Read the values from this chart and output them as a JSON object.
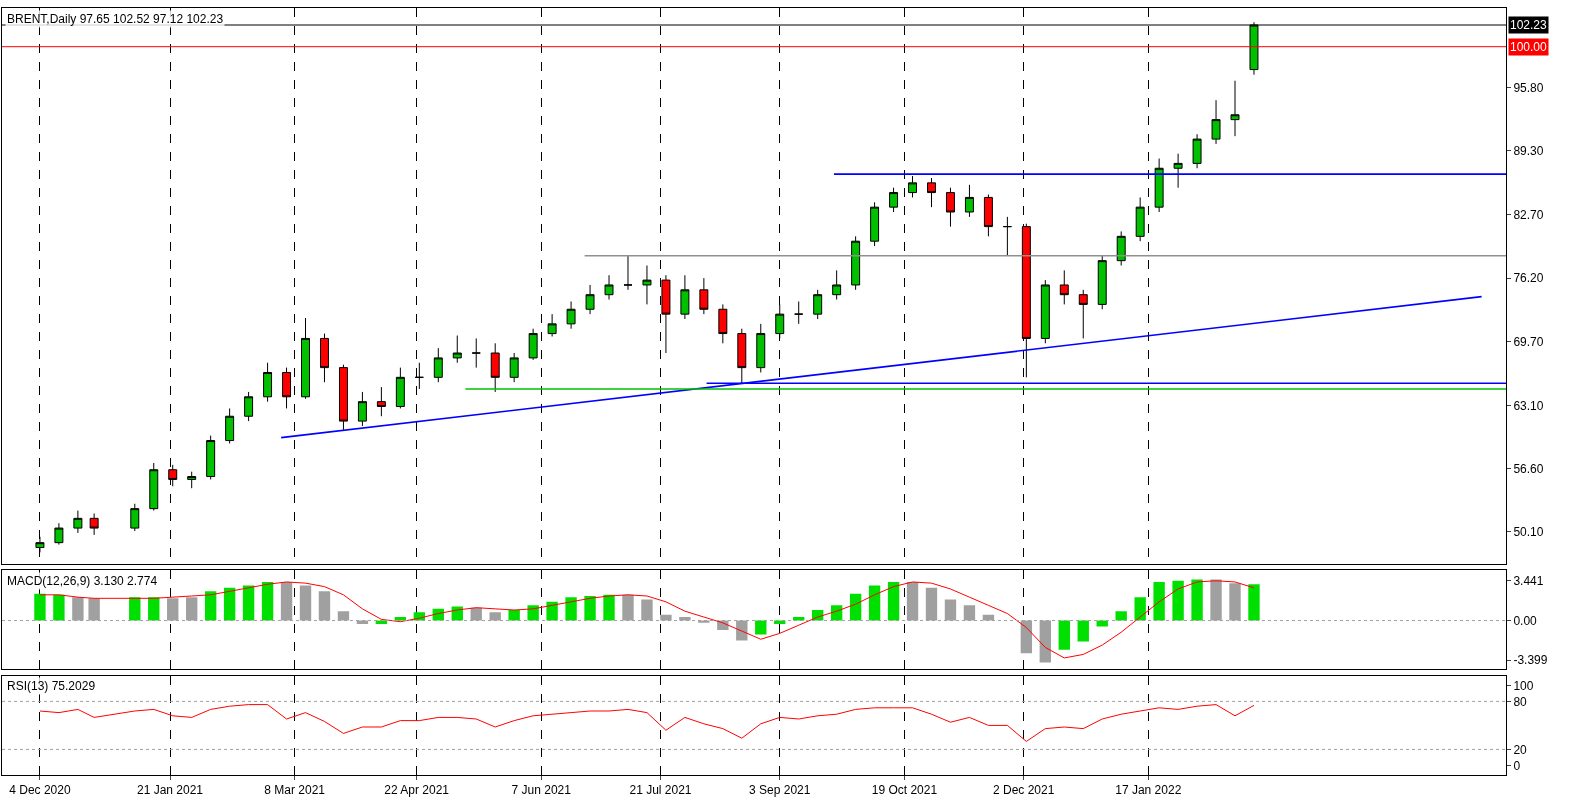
{
  "chart_data": [
    {
      "type": "candlestick",
      "annotations": [
        "BRENT,Daily 97.65 102.52 97.12 102.23"
      ],
      "x": [
        "2020-12-04",
        "2020-12-11",
        "2020-12-18",
        "2020-12-24",
        "2021-01-08",
        "2021-01-15",
        "2021-01-22",
        "2021-01-29",
        "2021-02-05",
        "2021-02-12",
        "2021-02-19",
        "2021-02-26",
        "2021-03-05",
        "2021-03-12",
        "2021-03-19",
        "2021-03-26",
        "2021-04-02",
        "2021-04-09",
        "2021-04-16",
        "2021-04-23",
        "2021-04-30",
        "2021-05-07",
        "2021-05-14",
        "2021-05-21",
        "2021-05-28",
        "2021-06-04",
        "2021-06-11",
        "2021-06-18",
        "2021-06-25",
        "2021-07-02",
        "2021-07-09",
        "2021-07-16",
        "2021-07-23",
        "2021-07-30",
        "2021-08-06",
        "2021-08-13",
        "2021-08-20",
        "2021-08-27",
        "2021-09-03",
        "2021-09-10",
        "2021-09-17",
        "2021-09-24",
        "2021-10-01",
        "2021-10-08",
        "2021-10-15",
        "2021-10-22",
        "2021-10-29",
        "2021-11-05",
        "2021-11-12",
        "2021-11-19",
        "2021-11-26",
        "2021-12-03",
        "2021-12-10",
        "2021-12-17",
        "2021-12-24",
        "2021-12-31",
        "2022-01-07",
        "2022-01-14",
        "2022-01-21",
        "2022-01-28",
        "2022-02-04",
        "2022-02-11",
        "2022-02-18",
        "2022-02-25"
      ],
      "ohlc": [
        [
          48.5,
          49.6,
          48.0,
          49.0
        ],
        [
          49.0,
          51.0,
          48.8,
          50.5
        ],
        [
          50.5,
          52.3,
          50.0,
          51.5
        ],
        [
          51.5,
          52.0,
          49.8,
          50.5
        ],
        [
          50.5,
          53.0,
          50.2,
          52.5
        ],
        [
          52.5,
          57.2,
          52.3,
          56.5
        ],
        [
          56.5,
          57.0,
          54.8,
          55.5
        ],
        [
          55.5,
          56.3,
          54.6,
          55.8
        ],
        [
          55.8,
          60.0,
          55.5,
          59.5
        ],
        [
          59.5,
          62.8,
          59.2,
          62.0
        ],
        [
          62.0,
          64.5,
          61.5,
          64.0
        ],
        [
          64.0,
          67.5,
          63.5,
          66.5
        ],
        [
          66.5,
          67.0,
          62.8,
          64.0
        ],
        [
          64.0,
          72.1,
          63.8,
          70.0
        ],
        [
          70.0,
          70.5,
          65.5,
          67.0
        ],
        [
          67.0,
          67.3,
          60.6,
          61.5
        ],
        [
          61.5,
          64.5,
          61.0,
          63.5
        ],
        [
          63.5,
          65.0,
          62.0,
          63.0
        ],
        [
          63.0,
          67.0,
          62.8,
          66.0
        ],
        [
          66.0,
          67.5,
          64.8,
          66.0
        ],
        [
          66.0,
          69.0,
          65.5,
          68.0
        ],
        [
          68.0,
          70.3,
          67.5,
          68.5
        ],
        [
          68.5,
          70.0,
          67.0,
          68.5
        ],
        [
          68.5,
          69.5,
          64.5,
          66.0
        ],
        [
          66.0,
          68.5,
          65.5,
          68.0
        ],
        [
          68.0,
          71.0,
          67.8,
          70.5
        ],
        [
          70.5,
          72.5,
          70.2,
          71.5
        ],
        [
          71.5,
          73.8,
          71.0,
          73.0
        ],
        [
          73.0,
          75.5,
          72.5,
          74.5
        ],
        [
          74.5,
          76.5,
          74.0,
          75.5
        ],
        [
          75.5,
          78.5,
          75.0,
          75.5
        ],
        [
          75.5,
          77.5,
          73.5,
          76.0
        ],
        [
          76.0,
          76.5,
          68.5,
          72.5
        ],
        [
          72.5,
          76.5,
          72.0,
          75.0
        ],
        [
          75.0,
          76.2,
          72.5,
          73.0
        ],
        [
          73.0,
          73.5,
          69.5,
          70.5
        ],
        [
          70.5,
          71.0,
          65.4,
          67.0
        ],
        [
          67.0,
          71.5,
          66.5,
          70.5
        ],
        [
          70.5,
          73.5,
          70.0,
          72.5
        ],
        [
          72.5,
          73.8,
          71.5,
          72.5
        ],
        [
          72.5,
          75.0,
          72.0,
          74.5
        ],
        [
          74.5,
          77.0,
          74.0,
          75.5
        ],
        [
          75.5,
          80.5,
          75.0,
          80.0
        ],
        [
          80.0,
          84.0,
          79.5,
          83.5
        ],
        [
          83.5,
          85.5,
          83.0,
          85.0
        ],
        [
          85.0,
          86.7,
          84.5,
          86.0
        ],
        [
          86.0,
          86.5,
          83.5,
          85.0
        ],
        [
          85.0,
          85.5,
          81.5,
          83.0
        ],
        [
          83.0,
          85.8,
          82.5,
          84.5
        ],
        [
          84.5,
          84.8,
          80.5,
          81.5
        ],
        [
          81.5,
          82.5,
          78.5,
          81.5
        ],
        [
          81.5,
          81.8,
          66.0,
          70.0
        ],
        [
          70.0,
          76.0,
          69.5,
          75.5
        ],
        [
          75.5,
          77.0,
          73.5,
          74.5
        ],
        [
          74.5,
          75.0,
          70.0,
          73.5
        ],
        [
          73.5,
          78.5,
          73.0,
          78.0
        ],
        [
          78.0,
          81.0,
          77.5,
          80.5
        ],
        [
          80.5,
          84.5,
          80.0,
          83.5
        ],
        [
          83.5,
          88.5,
          83.0,
          87.5
        ],
        [
          87.5,
          89.0,
          85.5,
          88.0
        ],
        [
          88.0,
          91.0,
          87.5,
          90.5
        ],
        [
          90.5,
          94.5,
          90.0,
          92.5
        ],
        [
          92.5,
          96.5,
          90.8,
          93.0
        ],
        [
          97.65,
          102.52,
          97.12,
          102.23
        ]
      ],
      "series": [
        {
          "type": "line",
          "color": "#0000ff",
          "x": [
            "2021-03-03",
            "2022-05-20"
          ],
          "values": [
            59.8,
            74.3
          ]
        },
        {
          "type": "line",
          "color": "#0000ff",
          "x": [
            "2021-09-23",
            "2022-05-29"
          ],
          "values": [
            86.9,
            86.9
          ]
        },
        {
          "type": "line",
          "color": "#909090",
          "x": [
            "2021-06-23",
            "2022-05-29"
          ],
          "values": [
            78.5,
            78.5
          ]
        },
        {
          "type": "line",
          "color": "#00c000",
          "x": [
            "2021-05-10",
            "2022-05-29"
          ],
          "values": [
            64.8,
            64.8
          ]
        },
        {
          "type": "line",
          "color": "#0000ff",
          "x": [
            "2021-08-07",
            "2022-05-29"
          ],
          "values": [
            65.4,
            65.4
          ]
        }
      ],
      "ref_lines": [
        {
          "axis": "y",
          "value": 102.23,
          "label": "102.23",
          "color": "#000000"
        },
        {
          "axis": "y",
          "value": 100.0,
          "label": "100.00",
          "color": "#ff0000"
        }
      ],
      "xlim": [
        "2020-11-20",
        "2022-05-29"
      ],
      "xticks": [
        {
          "value": "2020-12-04",
          "label": null
        },
        {
          "value": "2021-01-21",
          "label": null
        },
        {
          "value": "2021-03-08",
          "label": null
        },
        {
          "value": "2021-04-22",
          "label": null
        },
        {
          "value": "2021-06-07",
          "label": null
        },
        {
          "value": "2021-07-21",
          "label": null
        },
        {
          "value": "2021-09-03",
          "label": null
        },
        {
          "value": "2021-10-19",
          "label": null
        },
        {
          "value": "2021-12-02",
          "label": null
        },
        {
          "value": "2022-01-17",
          "label": null
        }
      ],
      "ylim": [
        46.83,
        103.98
      ],
      "yticks": [
        {
          "value": 50.1,
          "label": "50.10"
        },
        {
          "value": 56.6,
          "label": "56.60"
        },
        {
          "value": 63.1,
          "label": "63.10"
        },
        {
          "value": 69.7,
          "label": "69.70"
        },
        {
          "value": 76.2,
          "label": "76.20"
        },
        {
          "value": 82.7,
          "label": "82.70"
        },
        {
          "value": 89.3,
          "label": "89.30"
        },
        {
          "value": 95.8,
          "label": "95.80"
        }
      ],
      "grid": "x",
      "tick_labels": "y"
    },
    {
      "type": "bar",
      "annotations": [
        "MACD(12,26,9) 3.130 2.774"
      ],
      "x": [
        "2020-12-04",
        "2020-12-11",
        "2020-12-18",
        "2020-12-24",
        "2021-01-08",
        "2021-01-15",
        "2021-01-22",
        "2021-01-29",
        "2021-02-05",
        "2021-02-12",
        "2021-02-19",
        "2021-02-26",
        "2021-03-05",
        "2021-03-12",
        "2021-03-19",
        "2021-03-26",
        "2021-04-02",
        "2021-04-09",
        "2021-04-16",
        "2021-04-23",
        "2021-04-30",
        "2021-05-07",
        "2021-05-14",
        "2021-05-21",
        "2021-05-28",
        "2021-06-04",
        "2021-06-11",
        "2021-06-18",
        "2021-06-25",
        "2021-07-02",
        "2021-07-09",
        "2021-07-16",
        "2021-07-23",
        "2021-07-30",
        "2021-08-06",
        "2021-08-13",
        "2021-08-20",
        "2021-08-27",
        "2021-09-03",
        "2021-09-10",
        "2021-09-17",
        "2021-09-24",
        "2021-10-01",
        "2021-10-08",
        "2021-10-15",
        "2021-10-22",
        "2021-10-29",
        "2021-11-05",
        "2021-11-12",
        "2021-11-19",
        "2021-11-26",
        "2021-12-03",
        "2021-12-10",
        "2021-12-17",
        "2021-12-24",
        "2021-12-31",
        "2022-01-07",
        "2022-01-14",
        "2022-01-21",
        "2022-01-28",
        "2022-02-04",
        "2022-02-11",
        "2022-02-18",
        "2022-02-25"
      ],
      "series": [
        {
          "type": "bar",
          "colors": [
            "#00e000",
            "#00e000",
            "#a0a0a0",
            "#a0a0a0",
            "#00e000",
            "#00e000",
            "#a0a0a0",
            "#a0a0a0",
            "#00e000",
            "#00e000",
            "#00e000",
            "#00e000",
            "#a0a0a0",
            "#a0a0a0",
            "#a0a0a0",
            "#a0a0a0",
            "#a0a0a0",
            "#00e000",
            "#00e000",
            "#00e000",
            "#00e000",
            "#00e000",
            "#a0a0a0",
            "#a0a0a0",
            "#00e000",
            "#00e000",
            "#00e000",
            "#00e000",
            "#00e000",
            "#00e000",
            "#a0a0a0",
            "#a0a0a0",
            "#a0a0a0",
            "#a0a0a0",
            "#a0a0a0",
            "#a0a0a0",
            "#a0a0a0",
            "#00e000",
            "#00e000",
            "#00e000",
            "#00e000",
            "#00e000",
            "#00e000",
            "#00e000",
            "#00e000",
            "#a0a0a0",
            "#a0a0a0",
            "#a0a0a0",
            "#a0a0a0",
            "#a0a0a0",
            "#a0a0a0",
            "#a0a0a0",
            "#a0a0a0",
            "#00e000",
            "#00e000",
            "#00e000",
            "#00e000",
            "#00e000",
            "#00e000",
            "#00e000",
            "#00e000",
            "#a0a0a0",
            "#a0a0a0",
            "#00e000"
          ],
          "values": [
            2.3,
            2.2,
            2.0,
            1.9,
            2.0,
            2.0,
            1.9,
            2.0,
            2.5,
            2.8,
            3.0,
            3.3,
            3.3,
            3.0,
            2.5,
            0.8,
            -0.3,
            -0.3,
            0.3,
            0.7,
            1.0,
            1.2,
            1.1,
            0.7,
            0.9,
            1.3,
            1.6,
            2.0,
            2.1,
            2.2,
            2.2,
            1.8,
            0.5,
            0.3,
            -0.2,
            -0.8,
            -1.7,
            -1.2,
            -0.3,
            0.3,
            0.9,
            1.3,
            2.3,
            3.0,
            3.3,
            3.3,
            2.8,
            1.8,
            1.3,
            0.5,
            0.0,
            -2.8,
            -3.6,
            -2.5,
            -1.8,
            -0.5,
            0.8,
            2.0,
            3.3,
            3.4,
            3.5,
            3.5,
            3.2,
            3.1
          ]
        },
        {
          "type": "line",
          "color": "#ff0000",
          "values": [
            2.2,
            2.2,
            2.0,
            1.9,
            1.9,
            1.9,
            2.0,
            2.1,
            2.2,
            2.5,
            2.8,
            3.1,
            3.3,
            3.2,
            2.9,
            2.2,
            1.0,
            0.1,
            -0.1,
            0.2,
            0.6,
            0.9,
            1.1,
            1.0,
            0.9,
            1.0,
            1.3,
            1.6,
            1.9,
            2.1,
            2.2,
            2.1,
            1.6,
            0.8,
            0.3,
            -0.2,
            -0.9,
            -1.6,
            -1.1,
            -0.4,
            0.3,
            0.8,
            1.4,
            2.2,
            2.9,
            3.3,
            3.2,
            2.7,
            2.0,
            1.3,
            0.6,
            -0.6,
            -2.3,
            -3.2,
            -2.9,
            -2.1,
            -1.0,
            0.3,
            1.6,
            2.7,
            3.3,
            3.4,
            3.3,
            2.8
          ]
        }
      ],
      "ref_lines": [
        {
          "axis": "y",
          "value": 0,
          "color": "#a0a0a0",
          "line_style": "dotted"
        }
      ],
      "xlim": [
        "2020-11-20",
        "2022-05-29"
      ],
      "xticks": [
        {
          "value": "2020-12-04",
          "label": null
        },
        {
          "value": "2021-01-21",
          "label": null
        },
        {
          "value": "2021-03-08",
          "label": null
        },
        {
          "value": "2021-04-22",
          "label": null
        },
        {
          "value": "2021-06-07",
          "label": null
        },
        {
          "value": "2021-07-21",
          "label": null
        },
        {
          "value": "2021-09-03",
          "label": null
        },
        {
          "value": "2021-10-19",
          "label": null
        },
        {
          "value": "2021-12-02",
          "label": null
        },
        {
          "value": "2022-01-17",
          "label": null
        }
      ],
      "ylim": [
        -4.18,
        4.31
      ],
      "yticks": [
        {
          "value": 3.441,
          "label": "3.441"
        },
        {
          "value": 0,
          "label": "0.00"
        },
        {
          "value": -3.399,
          "label": "-3.399"
        }
      ],
      "grid": "x",
      "tick_labels": "y"
    },
    {
      "type": "line",
      "annotations": [
        "RSI(13) 75.2029"
      ],
      "x": [
        "2020-12-04",
        "2020-12-11",
        "2020-12-18",
        "2020-12-24",
        "2021-01-08",
        "2021-01-15",
        "2021-01-22",
        "2021-01-29",
        "2021-02-05",
        "2021-02-12",
        "2021-02-19",
        "2021-02-26",
        "2021-03-05",
        "2021-03-12",
        "2021-03-19",
        "2021-03-26",
        "2021-04-02",
        "2021-04-09",
        "2021-04-16",
        "2021-04-23",
        "2021-04-30",
        "2021-05-07",
        "2021-05-14",
        "2021-05-21",
        "2021-05-28",
        "2021-06-04",
        "2021-06-11",
        "2021-06-18",
        "2021-06-25",
        "2021-07-02",
        "2021-07-09",
        "2021-07-16",
        "2021-07-23",
        "2021-07-30",
        "2021-08-06",
        "2021-08-13",
        "2021-08-20",
        "2021-08-27",
        "2021-09-03",
        "2021-09-10",
        "2021-09-17",
        "2021-09-24",
        "2021-10-01",
        "2021-10-08",
        "2021-10-15",
        "2021-10-22",
        "2021-10-29",
        "2021-11-05",
        "2021-11-12",
        "2021-11-19",
        "2021-11-26",
        "2021-12-03",
        "2021-12-10",
        "2021-12-17",
        "2021-12-24",
        "2021-12-31",
        "2022-01-07",
        "2022-01-14",
        "2022-01-21",
        "2022-01-28",
        "2022-02-04",
        "2022-02-11",
        "2022-02-18",
        "2022-02-25"
      ],
      "series": [
        {
          "color": "#ff0000",
          "values": [
            68,
            66,
            70,
            60,
            68,
            70,
            62,
            60,
            70,
            74,
            76,
            76,
            58,
            66,
            55,
            40,
            48,
            48,
            56,
            56,
            60,
            60,
            58,
            48,
            56,
            62,
            64,
            66,
            68,
            68,
            70,
            66,
            44,
            60,
            52,
            46,
            34,
            52,
            60,
            58,
            62,
            64,
            70,
            72,
            72,
            72,
            64,
            54,
            60,
            50,
            50,
            30,
            46,
            48,
            46,
            58,
            64,
            68,
            72,
            70,
            74,
            76,
            62,
            75
          ]
        }
      ],
      "ref_lines": [
        {
          "axis": "y",
          "value": 80,
          "color": "#a0a0a0",
          "line_style": "dotted"
        },
        {
          "axis": "y",
          "value": 20,
          "color": "#a0a0a0",
          "line_style": "dotted"
        }
      ],
      "xlim": [
        "2020-11-20",
        "2022-05-29"
      ],
      "xticks": [
        {
          "value": "2020-12-04",
          "label": "4 Dec 2020"
        },
        {
          "value": "2021-01-21",
          "label": "21 Jan 2021"
        },
        {
          "value": "2021-03-08",
          "label": "8 Mar 2021"
        },
        {
          "value": "2021-04-22",
          "label": "22 Apr 2021"
        },
        {
          "value": "2021-06-07",
          "label": "7 Jun 2021"
        },
        {
          "value": "2021-07-21",
          "label": "21 Jul 2021"
        },
        {
          "value": "2021-09-03",
          "label": "3 Sep 2021"
        },
        {
          "value": "2021-10-19",
          "label": "19 Oct 2021"
        },
        {
          "value": "2021-12-02",
          "label": "2 Dec 2021"
        },
        {
          "value": "2022-01-17",
          "label": "17 Jan 2022"
        }
      ],
      "ylim": [
        -12,
        112
      ],
      "yticks": [
        0,
        20,
        80,
        100
      ],
      "grid": "x"
    }
  ]
}
